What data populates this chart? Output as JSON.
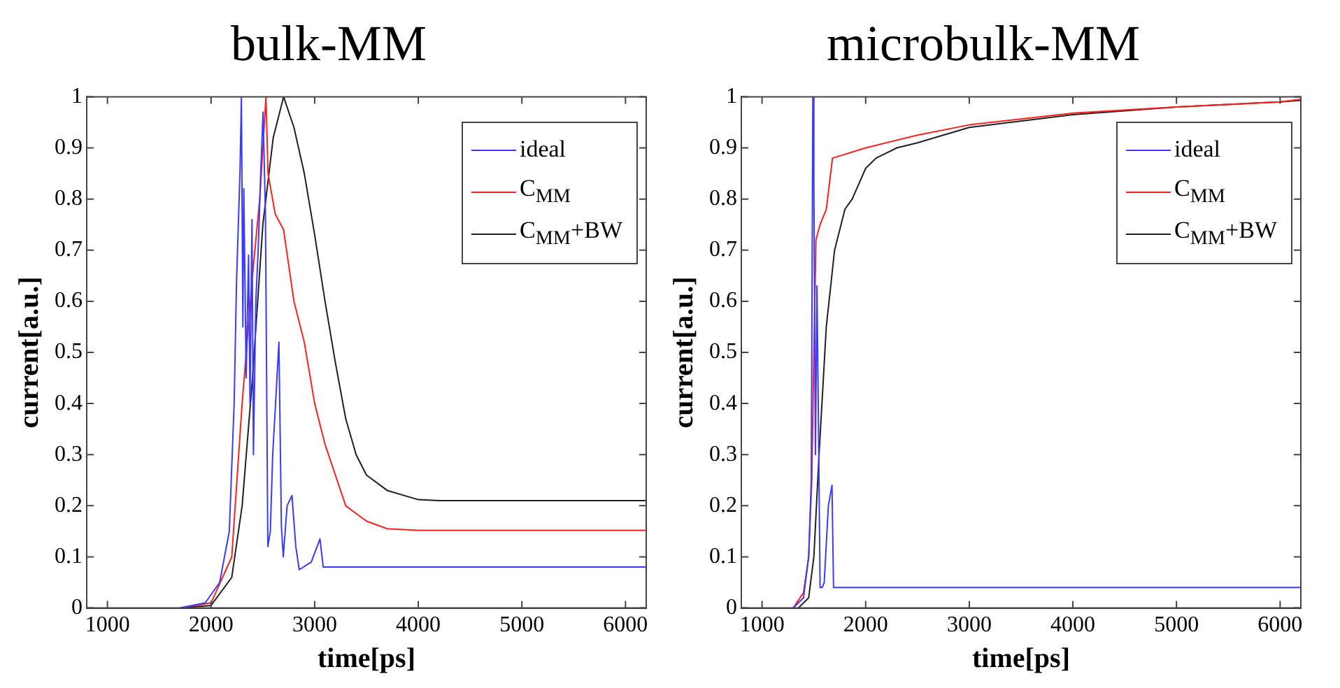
{
  "chart_data": [
    {
      "type": "line",
      "title": "bulk-MM",
      "xlabel": "time[ps]",
      "ylabel": "current[a.u.]",
      "xlim": [
        800,
        6200
      ],
      "xticks": [
        1000,
        2000,
        3000,
        4000,
        5000,
        6000
      ],
      "ylim": [
        0,
        1
      ],
      "yticks": [
        0,
        0.1,
        0.2,
        0.3,
        0.4,
        0.5,
        0.6,
        0.7,
        0.8,
        0.9,
        1
      ],
      "grid": false,
      "legend": "top right",
      "series": [
        {
          "name": "ideal",
          "color": "#3b3bff",
          "x": [
            1700,
            1944,
            2083,
            2176,
            2223,
            2246,
            2279,
            2293,
            2307,
            2316,
            2339,
            2362,
            2376,
            2395,
            2409,
            2432,
            2455,
            2479,
            2502,
            2525,
            2548,
            2572,
            2595,
            2628,
            2655,
            2679,
            2697,
            2734,
            2781,
            2818,
            2851,
            2967,
            3051,
            3083,
            6200
          ],
          "values": [
            0,
            0.01,
            0.05,
            0.15,
            0.4,
            0.64,
            0.85,
            1,
            0.55,
            0.82,
            0.45,
            0.69,
            0.4,
            0.76,
            0.3,
            0.6,
            0.7,
            0.85,
            0.97,
            0.77,
            0.12,
            0.15,
            0.3,
            0.42,
            0.52,
            0.16,
            0.1,
            0.2,
            0.22,
            0.12,
            0.075,
            0.09,
            0.135,
            0.08,
            0.08
          ]
        },
        {
          "name": "C$_{MM}$",
          "color": "#ff2020",
          "x": [
            1700,
            2000,
            2200,
            2300,
            2400,
            2470,
            2530,
            2550,
            2620,
            2700,
            2800,
            2900,
            3000,
            3100,
            3200,
            3300,
            3500,
            3700,
            4000,
            6200
          ],
          "values": [
            0,
            0.01,
            0.1,
            0.4,
            0.65,
            0.8,
            1,
            0.85,
            0.77,
            0.74,
            0.6,
            0.52,
            0.4,
            0.32,
            0.26,
            0.2,
            0.17,
            0.155,
            0.152,
            0.152
          ]
        },
        {
          "name": "C$_{MM}$+BW",
          "color": "#202020",
          "x": [
            1700,
            2000,
            2200,
            2300,
            2400,
            2500,
            2600,
            2700,
            2800,
            2900,
            3000,
            3100,
            3200,
            3300,
            3400,
            3500,
            3700,
            4000,
            4200,
            6200
          ],
          "values": [
            0,
            0.005,
            0.06,
            0.2,
            0.45,
            0.75,
            0.92,
            1,
            0.94,
            0.85,
            0.73,
            0.6,
            0.48,
            0.37,
            0.3,
            0.26,
            0.23,
            0.212,
            0.21,
            0.21
          ]
        }
      ]
    },
    {
      "type": "line",
      "title": "microbulk-MM",
      "xlabel": "time[ps]",
      "ylabel": "current[a.u.]",
      "xlim": [
        800,
        6200
      ],
      "xticks": [
        1000,
        2000,
        3000,
        4000,
        5000,
        6000
      ],
      "ylim": [
        0,
        1
      ],
      "yticks": [
        0,
        0.1,
        0.2,
        0.3,
        0.4,
        0.5,
        0.6,
        0.7,
        0.8,
        0.9,
        1
      ],
      "grid": false,
      "legend": "top right",
      "series": [
        {
          "name": "ideal",
          "color": "#3b3bff",
          "x": [
            1300,
            1400,
            1450,
            1475,
            1490,
            1500,
            1515,
            1530,
            1545,
            1560,
            1580,
            1600,
            1640,
            1675,
            1690,
            6200
          ],
          "values": [
            0,
            0.02,
            0.1,
            0.25,
            1,
            0.83,
            0.3,
            0.63,
            0.35,
            0.04,
            0.04,
            0.05,
            0.2,
            0.24,
            0.04,
            0.04
          ]
        },
        {
          "name": "C$_{MM}$",
          "color": "#ff2020",
          "x": [
            1300,
            1400,
            1450,
            1480,
            1500,
            1520,
            1560,
            1620,
            1680,
            2000,
            2500,
            3000,
            4000,
            5000,
            6000,
            6200
          ],
          "values": [
            0,
            0.03,
            0.1,
            0.25,
            0.5,
            0.72,
            0.75,
            0.78,
            0.88,
            0.9,
            0.925,
            0.945,
            0.968,
            0.98,
            0.99,
            0.995
          ]
        },
        {
          "name": "C$_{MM}$+BW",
          "color": "#202020",
          "x": [
            1350,
            1450,
            1500,
            1550,
            1620,
            1700,
            1800,
            1870,
            2000,
            2100,
            2300,
            2500,
            3000,
            4000,
            5000,
            6000,
            6200
          ],
          "values": [
            0,
            0.02,
            0.1,
            0.3,
            0.55,
            0.7,
            0.78,
            0.8,
            0.86,
            0.88,
            0.9,
            0.91,
            0.94,
            0.965,
            0.98,
            0.99,
            0.993
          ]
        }
      ]
    }
  ]
}
